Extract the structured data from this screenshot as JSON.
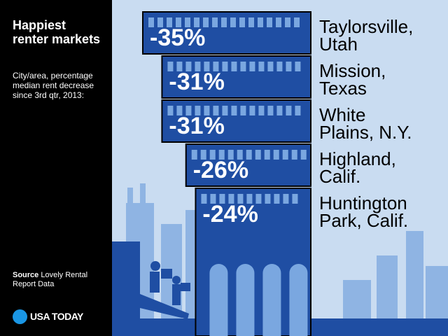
{
  "title": "Happiest renter markets",
  "subtitle": "City/area, percentage median rent decrease since 3rd qtr, 2013:",
  "source": {
    "label": "Source",
    "text": "Lovely Rental Report Data"
  },
  "logo": {
    "text": "USA TODAY",
    "icon": "usa-today-dot-icon"
  },
  "colors": {
    "bar": "#1f4ea3",
    "bar_border": "#000000",
    "window": "#7aa7e0",
    "background": "#c9dcf1",
    "skyline": "#8fb4e3"
  },
  "chart_data": {
    "type": "bar",
    "orientation": "horizontal",
    "categories": [
      "Taylorsville, Utah",
      "Mission, Texas",
      "White Plains, N.Y.",
      "Highland, Calif.",
      "Huntington Park, Calif."
    ],
    "city_lines": [
      [
        "Taylorsville,",
        "Utah"
      ],
      [
        "Mission,",
        "Texas"
      ],
      [
        "White",
        "Plains, N.Y."
      ],
      [
        "Highland,",
        "Calif."
      ],
      [
        "Huntington",
        "Park, Calif."
      ]
    ],
    "values": [
      -35,
      -31,
      -31,
      -26,
      -24
    ],
    "value_labels": [
      "-35%",
      "-31%",
      "-31%",
      "-26%",
      "-24%"
    ],
    "unit": "percent"
  }
}
